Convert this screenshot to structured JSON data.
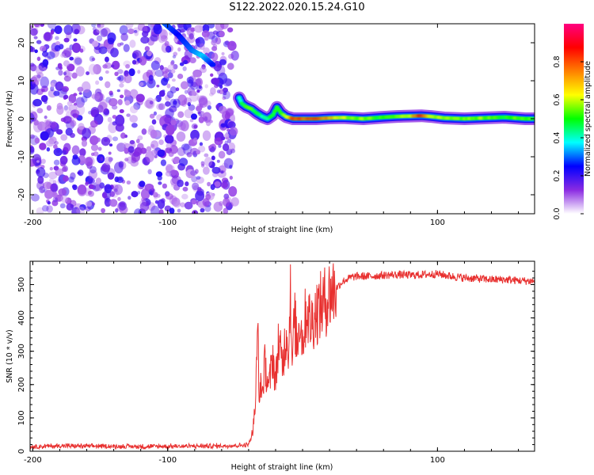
{
  "title": "S122.2022.020.15.24.G10",
  "chart_data": [
    {
      "type": "heatmap",
      "xlabel": "Height of straight line (km)",
      "ylabel": "Frequency (Hz)",
      "xlim": [
        -202,
        172
      ],
      "ylim": [
        -25,
        25
      ],
      "xticks": [
        -200,
        -100,
        100
      ],
      "yticks": [
        -20,
        -10,
        0,
        10,
        20
      ],
      "colorbar": {
        "label": "Normalized spectral amplitude",
        "range": [
          0.0,
          1.0
        ],
        "ticks": [
          0.0,
          0.2,
          0.4,
          0.6,
          0.8
        ],
        "tick_labels": [
          "0.0",
          "0.2",
          "0.4",
          "0.6",
          "0.8"
        ],
        "colors": [
          "#ffffff",
          "#8a2be2",
          "#0000ff",
          "#00ffff",
          "#00ff00",
          "#ffff00",
          "#ff8000",
          "#ff0000",
          "#ff0080"
        ]
      },
      "noise_region_x": [
        -202,
        -50
      ],
      "ridge": [
        {
          "x": -47,
          "y": 5.5,
          "v": 0.35
        },
        {
          "x": -45,
          "y": 4.0,
          "v": 0.45
        },
        {
          "x": -42,
          "y": 3.2,
          "v": 0.55
        },
        {
          "x": -38,
          "y": 2.6,
          "v": 0.5
        },
        {
          "x": -34,
          "y": 1.5,
          "v": 0.45
        },
        {
          "x": -30,
          "y": 0.6,
          "v": 0.4
        },
        {
          "x": -26,
          "y": 0.0,
          "v": 0.45
        },
        {
          "x": -22,
          "y": 1.0,
          "v": 0.5
        },
        {
          "x": -19,
          "y": 3.0,
          "v": 0.55
        },
        {
          "x": -16,
          "y": 1.5,
          "v": 0.5
        },
        {
          "x": -12,
          "y": 0.5,
          "v": 0.6
        },
        {
          "x": -7,
          "y": 0.0,
          "v": 0.85
        },
        {
          "x": 0,
          "y": 0.0,
          "v": 0.8
        },
        {
          "x": 10,
          "y": 0.0,
          "v": 0.85
        },
        {
          "x": 20,
          "y": 0.2,
          "v": 0.7
        },
        {
          "x": 30,
          "y": 0.3,
          "v": 0.6
        },
        {
          "x": 45,
          "y": 0.0,
          "v": 0.55
        },
        {
          "x": 60,
          "y": 0.4,
          "v": 0.5
        },
        {
          "x": 70,
          "y": 0.6,
          "v": 0.55
        },
        {
          "x": 80,
          "y": 0.7,
          "v": 0.65
        },
        {
          "x": 88,
          "y": 0.8,
          "v": 0.9
        },
        {
          "x": 95,
          "y": 0.6,
          "v": 0.6
        },
        {
          "x": 105,
          "y": 0.2,
          "v": 0.6
        },
        {
          "x": 120,
          "y": 0.0,
          "v": 0.55
        },
        {
          "x": 135,
          "y": 0.2,
          "v": 0.55
        },
        {
          "x": 150,
          "y": 0.4,
          "v": 0.5
        },
        {
          "x": 165,
          "y": 0.0,
          "v": 0.55
        },
        {
          "x": 172,
          "y": 0.0,
          "v": 0.5
        }
      ],
      "diagonal_streak": [
        {
          "x": -102,
          "y": 25,
          "v": 0.3
        },
        {
          "x": -92,
          "y": 22,
          "v": 0.25
        },
        {
          "x": -82,
          "y": 18,
          "v": 0.3
        },
        {
          "x": -74,
          "y": 16.5,
          "v": 0.35
        },
        {
          "x": -66,
          "y": 14,
          "v": 0.25
        }
      ]
    },
    {
      "type": "line",
      "xlabel": "Height of straight line (km)",
      "ylabel": "SNR (10 * v/v)",
      "xlim": [
        -202,
        172
      ],
      "ylim": [
        0,
        570
      ],
      "xticks": [
        -200,
        -100,
        100
      ],
      "yticks": [
        0,
        100,
        200,
        300,
        400,
        500
      ],
      "color": "#e8302f",
      "series": [
        {
          "x": [
            -202,
            -180,
            -150,
            -120,
            -90,
            -60,
            -45,
            -40,
            -37,
            -35,
            -33,
            -32,
            -31,
            -30,
            -28,
            -25,
            -22,
            -20,
            -18,
            -15,
            -12,
            -10,
            -9,
            -8,
            -6,
            -4,
            -2,
            0,
            3,
            6,
            10,
            15,
            20,
            25,
            30,
            35,
            40,
            50,
            60,
            70,
            80,
            90,
            100,
            110,
            120,
            130,
            140,
            150,
            160,
            172
          ],
          "y": [
            14,
            16,
            15,
            14,
            15,
            16,
            18,
            20,
            60,
            140,
            380,
            120,
            220,
            170,
            260,
            190,
            290,
            200,
            330,
            260,
            360,
            300,
            555,
            250,
            400,
            320,
            410,
            330,
            430,
            380,
            420,
            440,
            470,
            490,
            510,
            520,
            525,
            525,
            528,
            530,
            528,
            530,
            532,
            525,
            520,
            518,
            515,
            515,
            512,
            510
          ]
        }
      ]
    }
  ]
}
